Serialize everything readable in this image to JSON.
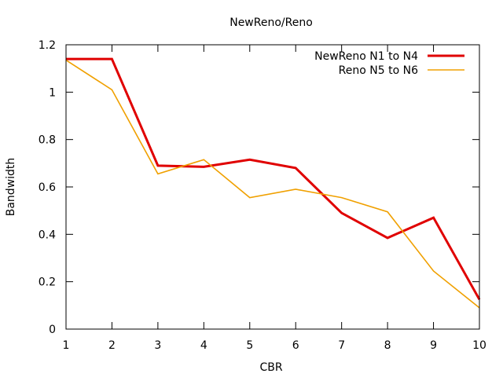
{
  "chart_data": {
    "type": "line",
    "title": "NewReno/Reno",
    "xlabel": "CBR",
    "ylabel": "Bandwidth",
    "x": [
      1,
      2,
      3,
      4,
      5,
      6,
      7,
      8,
      9,
      10
    ],
    "xlim": [
      1,
      10
    ],
    "ylim": [
      0,
      1.2
    ],
    "xticks": [
      "1",
      "2",
      "3",
      "4",
      "5",
      "6",
      "7",
      "8",
      "9",
      "10"
    ],
    "yticks": [
      "0",
      "0.2",
      "0.4",
      "0.6",
      "0.8",
      "1",
      "1.2"
    ],
    "grid": false,
    "legend_position": "top-right",
    "series": [
      {
        "name": "NewReno N1 to N4",
        "color": "#e00000",
        "values": [
          1.14,
          1.14,
          0.69,
          0.685,
          0.715,
          0.68,
          0.49,
          0.385,
          0.47,
          0.125
        ]
      },
      {
        "name": "Reno N5 to N6",
        "color": "#f0a000",
        "values": [
          1.135,
          1.01,
          0.655,
          0.715,
          0.555,
          0.59,
          0.555,
          0.495,
          0.245,
          0.09
        ]
      }
    ]
  }
}
